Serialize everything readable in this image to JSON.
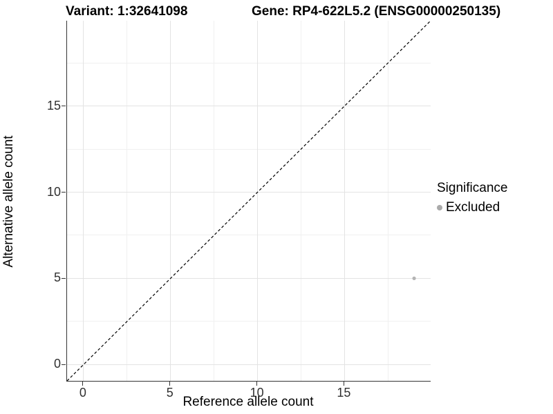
{
  "titles": {
    "variant": "Variant: 1:32641098",
    "gene": "Gene: RP4-622L5.2 (ENSG00000250135)"
  },
  "chart_data": {
    "type": "scatter",
    "title": "Variant: 1:32641098 | Gene: RP4-622L5.2 (ENSG00000250135)",
    "xlabel": "Reference allele count",
    "ylabel": "Alternative allele count",
    "xlim": [
      -0.95,
      19.95
    ],
    "ylim": [
      -0.95,
      19.95
    ],
    "xticks": [
      0,
      5,
      10,
      15
    ],
    "yticks": [
      0,
      5,
      10,
      15
    ],
    "xminor": [
      2.5,
      7.5,
      12.5,
      17.5
    ],
    "yminor": [
      2.5,
      7.5,
      12.5,
      17.5
    ],
    "grid": "on",
    "identity_line": {
      "style": "dashed",
      "equation": "y = x",
      "from": [
        -0.95,
        -0.95
      ],
      "to": [
        19.95,
        19.95
      ]
    },
    "points": [
      {
        "x": 19,
        "y": 5,
        "group": "Excluded"
      }
    ],
    "legend": {
      "position": "right",
      "title": "Significance",
      "items": [
        {
          "label": "Excluded",
          "color": "#aaaaaa"
        }
      ]
    },
    "colors": {
      "point": "#b4b4b4",
      "grid_major": "#e3e3e3",
      "grid_minor": "#f0f0f0",
      "axis_line": "#333333",
      "dashed_line": "#000000"
    }
  }
}
